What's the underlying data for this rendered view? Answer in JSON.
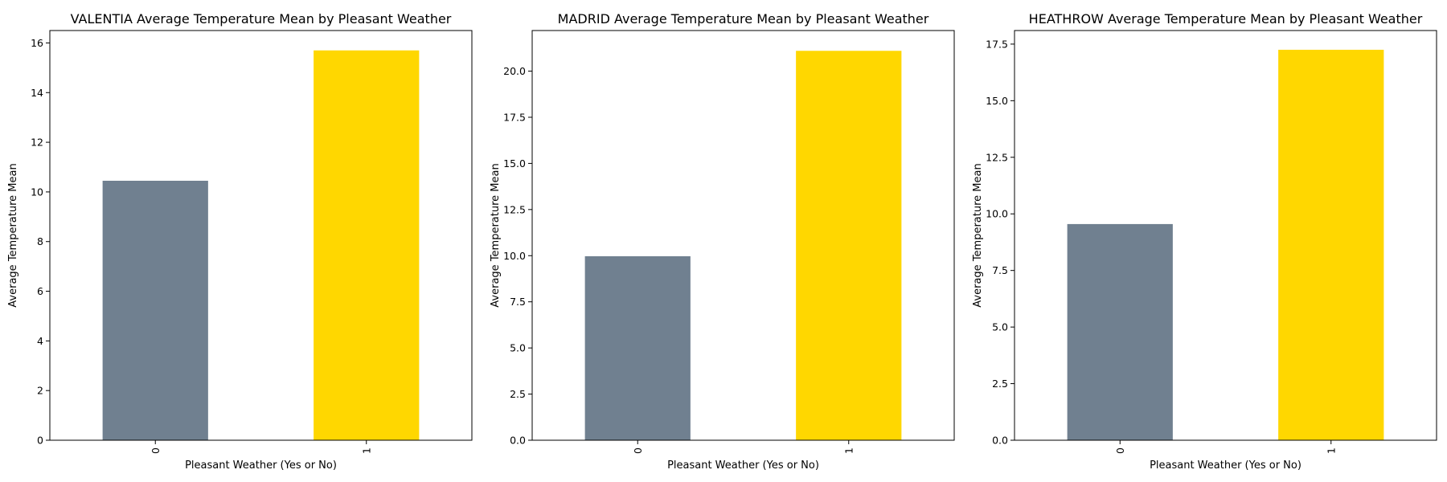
{
  "colors": {
    "not_pleasant_bar": "#708090",
    "pleasant_bar": "#FFD700"
  },
  "chart_data": [
    {
      "type": "bar",
      "title": "VALENTIA Average Temperature Mean by Pleasant Weather",
      "xlabel": "Pleasant Weather (Yes or No)",
      "ylabel": "Average Temperature Mean",
      "categories": [
        "0",
        "1"
      ],
      "values": [
        10.45,
        15.7
      ],
      "bar_colors": [
        "#708090",
        "#FFD700"
      ],
      "ylim": [
        0,
        16.5
      ],
      "yticks": [
        0,
        2,
        4,
        6,
        8,
        10,
        12,
        14,
        16
      ],
      "ytick_labels": [
        "0",
        "2",
        "4",
        "6",
        "8",
        "10",
        "12",
        "14",
        "16"
      ],
      "grid": false
    },
    {
      "type": "bar",
      "title": "MADRID Average Temperature Mean by Pleasant Weather",
      "xlabel": "Pleasant Weather (Yes or No)",
      "ylabel": "Average Temperature Mean",
      "categories": [
        "0",
        "1"
      ],
      "values": [
        9.97,
        21.1
      ],
      "bar_colors": [
        "#708090",
        "#FFD700"
      ],
      "ylim": [
        0,
        22.2
      ],
      "yticks": [
        0,
        2.5,
        5,
        7.5,
        10,
        12.5,
        15,
        17.5,
        20
      ],
      "ytick_labels": [
        "0.0",
        "2.5",
        "5.0",
        "7.5",
        "10.0",
        "12.5",
        "15.0",
        "17.5",
        "20.0"
      ],
      "grid": false
    },
    {
      "type": "bar",
      "title": "HEATHROW Average Temperature Mean by Pleasant Weather",
      "xlabel": "Pleasant Weather (Yes or No)",
      "ylabel": "Average Temperature Mean",
      "categories": [
        "0",
        "1"
      ],
      "values": [
        9.55,
        17.25
      ],
      "bar_colors": [
        "#708090",
        "#FFD700"
      ],
      "ylim": [
        0,
        18.1
      ],
      "yticks": [
        0,
        2.5,
        5,
        7.5,
        10,
        12.5,
        15,
        17.5
      ],
      "ytick_labels": [
        "0.0",
        "2.5",
        "5.0",
        "7.5",
        "10.0",
        "12.5",
        "15.0",
        "17.5"
      ],
      "grid": false
    }
  ]
}
